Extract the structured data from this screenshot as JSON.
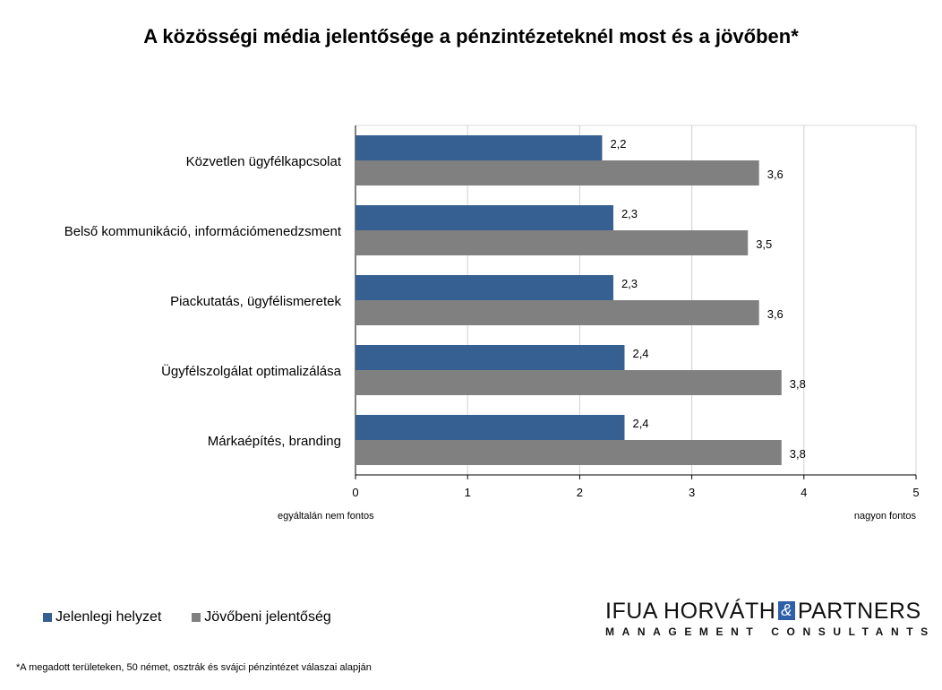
{
  "chart_data": {
    "type": "bar",
    "orientation": "horizontal",
    "title": "A közösségi média jelentősége a pénzintézeteknél most és a jövőben*",
    "categories": [
      "Közvetlen ügyfélkapcsolat",
      "Belső kommunikáció, információmenedzsment",
      "Piackutatás, ügyfélismeretek",
      "Ügyfélszolgálat optimalizálása",
      "Márkaépítés, branding"
    ],
    "series": [
      {
        "name": "Jelenlegi helyzet",
        "color": "#356091",
        "values": [
          2.2,
          2.3,
          2.3,
          2.4,
          2.4
        ],
        "labels": [
          "2,2",
          "2,3",
          "2,3",
          "2,4",
          "2,4"
        ]
      },
      {
        "name": "Jövőbeni jelentőség",
        "color": "#808080",
        "values": [
          3.6,
          3.5,
          3.6,
          3.8,
          3.8
        ],
        "labels": [
          "3,6",
          "3,5",
          "3,6",
          "3,8",
          "3,8"
        ]
      }
    ],
    "xlim": [
      0,
      5
    ],
    "xticks": [
      "0",
      "1",
      "2",
      "3",
      "4",
      "5"
    ],
    "x_low_label": "egyáltalán nem fontos",
    "x_high_label": "nagyon fontos",
    "grid": true,
    "legend_position": "bottom-left"
  },
  "footnote": "*A megadott területeken, 50 német, osztrák és svájci pénzintézet válaszai alapján",
  "logo": {
    "line1_a": "IFUA HORVÁTH",
    "amp": "&",
    "line1_b": "PARTNERS",
    "line2": "MANAGEMENT CONSULTANTS"
  }
}
